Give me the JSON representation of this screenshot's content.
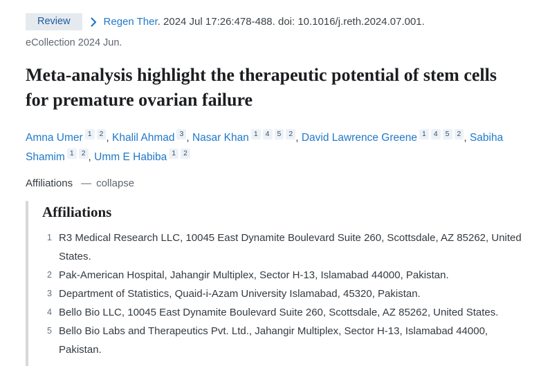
{
  "header": {
    "badge": "Review",
    "journal": "Regen Ther",
    "citation": ". 2024 Jul 17:26:478-488. doi: 10.1016/j.reth.2024.07.001.",
    "ecollection": "eCollection 2024 Jun."
  },
  "title": "Meta-analysis highlight the therapeutic potential of stem cells for premature ovarian failure",
  "authors": [
    {
      "name": "Amna Umer",
      "affiliations": [
        "1",
        "2"
      ]
    },
    {
      "name": "Khalil Ahmad",
      "affiliations": [
        "3"
      ]
    },
    {
      "name": "Nasar Khan",
      "affiliations": [
        "1",
        "4",
        "5",
        "2"
      ]
    },
    {
      "name": "David Lawrence Greene",
      "affiliations": [
        "1",
        "4",
        "5",
        "2"
      ]
    },
    {
      "name": "Sabiha Shamim",
      "affiliations": [
        "1",
        "2"
      ]
    },
    {
      "name": "Umm E Habiba",
      "affiliations": [
        "1",
        "2"
      ]
    }
  ],
  "affiliations_toggle": {
    "label": "Affiliations",
    "action": "collapse"
  },
  "affiliations": {
    "heading": "Affiliations",
    "items": [
      {
        "num": "1",
        "text": "R3 Medical Research LLC, 10045 East Dynamite Boulevard Suite 260, Scottsdale, AZ 85262, United States."
      },
      {
        "num": "2",
        "text": "Pak-American Hospital, Jahangir Multiplex, Sector H-13, Islamabad 44000, Pakistan."
      },
      {
        "num": "3",
        "text": "Department of Statistics, Quaid-i-Azam University Islamabad, 45320, Pakistan."
      },
      {
        "num": "4",
        "text": "Bello Bio LLC, 10045 East Dynamite Boulevard Suite 260, Scottsdale, AZ 85262, United States."
      },
      {
        "num": "5",
        "text": "Bello Bio Labs and Therapeutics Pvt. Ltd., Jahangir Multiplex, Sector H-13, Islamabad 44000, Pakistan."
      }
    ]
  },
  "icons": {
    "chevron_right": "›",
    "collapse_dash": "—"
  },
  "colors": {
    "link_blue": "#2079c9",
    "badge_bg": "#e5eaef",
    "badge_text": "#1b5b99",
    "sup_bg": "#edf2f7",
    "muted_gray": "#5f6671",
    "rule_gray": "#d8d8d8"
  }
}
